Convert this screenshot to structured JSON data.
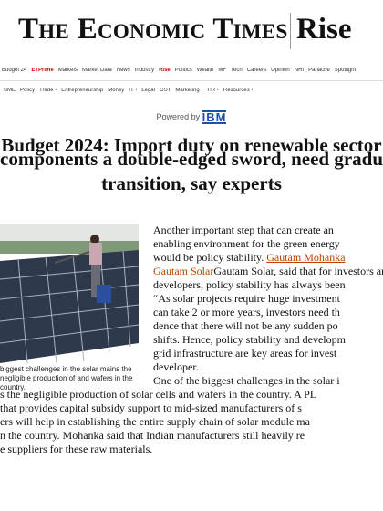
{
  "masthead": {
    "title": "The Economic Times",
    "brand": "Rise"
  },
  "nav_primary": [
    "Budget 24",
    "ETPrime",
    "Markets",
    "Market Data",
    "News",
    "Industry",
    "Rise",
    "Politics",
    "Wealth",
    "MF",
    "Tech",
    "Careers",
    "Opinion",
    "NRI",
    "Panache",
    "Spotlight"
  ],
  "nav_secondary": [
    "SME",
    "Policy",
    "Trade •",
    "Entrepreneurship",
    "Money",
    "IT •",
    "Legal",
    "GST",
    "Marketing •",
    "HR •",
    "Resources •"
  ],
  "powered_by": {
    "label": "Powered by",
    "logo": "IBM"
  },
  "headline_lines": [
    "Budget 2024: Import duty on renewable sector",
    "components a double-edged sword, need gradual",
    "transition, say experts"
  ],
  "caption": "biggest challenges in the solar mains the negligible production of and wafers in the country.",
  "column_lines": [
    "Another important step that can create an",
    "enabling environment for the green energy",
    "would be policy stability.",
    "Gautam Solar, said that for investors and p",
    "developers, policy stability has always been",
    "“As solar projects require huge investment",
    "can take 2 or more years, investors need th",
    "dence that there will not be any sudden po",
    "shifts. Hence, policy stability and developm",
    "grid infrastructure are key areas for invest",
    "developer.",
    "One of the biggest challenges in the solar i"
  ],
  "column_link_1": "Gautam Mohanka",
  "column_link_2": "Gautam Solar",
  "full_lines": [
    "s the negligible production of solar cells and wafers in the country. A PL",
    "that provides capital subsidy support to mid-sized manufacturers of s",
    "ers will help in establishing the entire supply chain of solar module ma",
    "n the country. Mohanka said that Indian manufacturers still heavily re",
    "e suppliers for these raw materials."
  ],
  "colors": {
    "accent": "#c00000",
    "link": "#c04000",
    "ibm": "#1f4fa8"
  }
}
